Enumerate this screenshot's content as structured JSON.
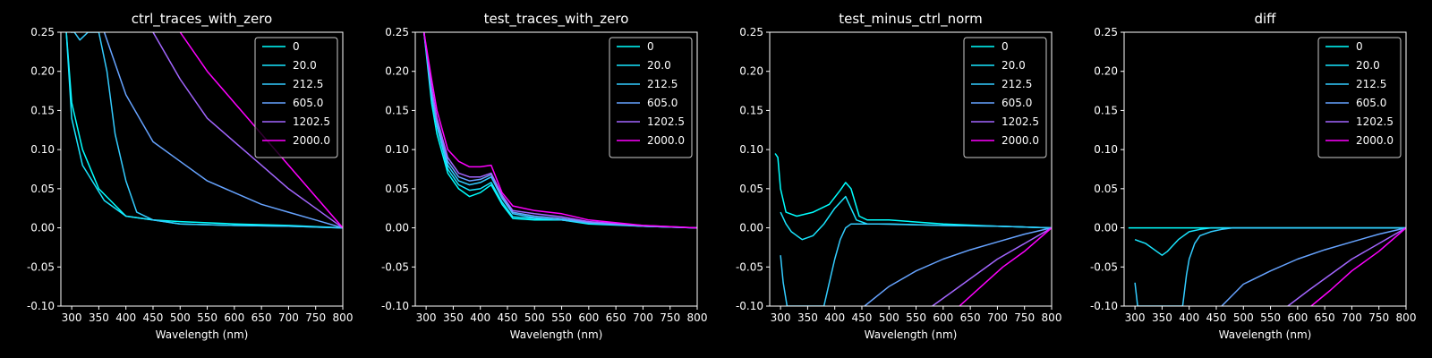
{
  "chart_data": [
    {
      "type": "line",
      "title": "ctrl_traces_with_zero",
      "xlabel": "Wavelength (nm)",
      "ylabel": "",
      "xlim": [
        280,
        800
      ],
      "ylim": [
        -0.1,
        0.25
      ],
      "xticks": [
        300,
        350,
        400,
        450,
        500,
        550,
        600,
        650,
        700,
        750,
        800
      ],
      "yticks": [
        -0.1,
        -0.05,
        0.0,
        0.05,
        0.1,
        0.15,
        0.2,
        0.25
      ],
      "legend_position": "top-right",
      "series": [
        {
          "name": "0",
          "color": "#00ffff",
          "x": [
            290,
            300,
            320,
            350,
            400,
            450,
            500,
            600,
            700,
            800
          ],
          "y": [
            0.25,
            0.16,
            0.1,
            0.05,
            0.015,
            0.01,
            0.008,
            0.005,
            0.003,
            0.0
          ]
        },
        {
          "name": "20.0",
          "color": "#19e6ff",
          "x": [
            290,
            300,
            320,
            360,
            400,
            450,
            500,
            600,
            700,
            800
          ],
          "y": [
            0.25,
            0.14,
            0.08,
            0.035,
            0.015,
            0.01,
            0.005,
            0.003,
            0.002,
            0.0
          ]
        },
        {
          "name": "212.5",
          "color": "#33ccff",
          "x": [
            298,
            305,
            315,
            330,
            350,
            365,
            380,
            400,
            420,
            450,
            500,
            600,
            700,
            800
          ],
          "y": [
            0.25,
            0.25,
            0.24,
            0.25,
            0.25,
            0.2,
            0.12,
            0.06,
            0.02,
            0.01,
            0.005,
            0.003,
            0.002,
            0.0
          ]
        },
        {
          "name": "605.0",
          "color": "#66a3ff",
          "x": [
            360,
            400,
            450,
            500,
            550,
            600,
            650,
            700,
            750,
            800
          ],
          "y": [
            0.25,
            0.17,
            0.11,
            0.085,
            0.06,
            0.045,
            0.03,
            0.02,
            0.01,
            0.0
          ]
        },
        {
          "name": "1202.5",
          "color": "#a366ff",
          "x": [
            450,
            500,
            550,
            600,
            650,
            700,
            750,
            800
          ],
          "y": [
            0.25,
            0.19,
            0.14,
            0.11,
            0.08,
            0.05,
            0.025,
            0.0
          ]
        },
        {
          "name": "2000.0",
          "color": "#ff00ff",
          "x": [
            500,
            550,
            600,
            650,
            700,
            750,
            800
          ],
          "y": [
            0.25,
            0.2,
            0.16,
            0.12,
            0.08,
            0.04,
            0.0
          ]
        }
      ]
    },
    {
      "type": "line",
      "title": "test_traces_with_zero",
      "xlabel": "Wavelength (nm)",
      "ylabel": "",
      "xlim": [
        280,
        800
      ],
      "ylim": [
        -0.1,
        0.25
      ],
      "xticks": [
        300,
        350,
        400,
        450,
        500,
        550,
        600,
        650,
        700,
        750,
        800
      ],
      "yticks": [
        -0.1,
        -0.05,
        0.0,
        0.05,
        0.1,
        0.15,
        0.2,
        0.25
      ],
      "legend_position": "top-right",
      "series": [
        {
          "name": "0",
          "color": "#00ffff",
          "x": [
            296,
            310,
            320,
            340,
            360,
            380,
            400,
            420,
            440,
            460,
            500,
            550,
            600,
            700,
            800
          ],
          "y": [
            0.25,
            0.16,
            0.12,
            0.07,
            0.05,
            0.04,
            0.045,
            0.055,
            0.03,
            0.012,
            0.01,
            0.01,
            0.005,
            0.002,
            0.0
          ]
        },
        {
          "name": "20.0",
          "color": "#19e6ff",
          "x": [
            296,
            310,
            320,
            340,
            360,
            380,
            400,
            420,
            440,
            460,
            500,
            550,
            600,
            700,
            800
          ],
          "y": [
            0.25,
            0.17,
            0.13,
            0.075,
            0.055,
            0.048,
            0.05,
            0.058,
            0.033,
            0.014,
            0.012,
            0.01,
            0.006,
            0.002,
            0.0
          ]
        },
        {
          "name": "212.5",
          "color": "#33ccff",
          "x": [
            296,
            310,
            320,
            340,
            360,
            380,
            400,
            420,
            440,
            460,
            500,
            550,
            600,
            700,
            800
          ],
          "y": [
            0.25,
            0.17,
            0.13,
            0.08,
            0.06,
            0.055,
            0.058,
            0.065,
            0.038,
            0.018,
            0.013,
            0.01,
            0.006,
            0.002,
            0.0
          ]
        },
        {
          "name": "605.0",
          "color": "#66a3ff",
          "x": [
            296,
            310,
            320,
            340,
            360,
            380,
            400,
            420,
            440,
            460,
            500,
            550,
            600,
            700,
            800
          ],
          "y": [
            0.25,
            0.175,
            0.135,
            0.085,
            0.065,
            0.06,
            0.062,
            0.068,
            0.04,
            0.02,
            0.015,
            0.012,
            0.007,
            0.002,
            0.0
          ]
        },
        {
          "name": "1202.5",
          "color": "#a366ff",
          "x": [
            296,
            310,
            320,
            340,
            360,
            380,
            400,
            420,
            440,
            460,
            500,
            550,
            600,
            700,
            800
          ],
          "y": [
            0.25,
            0.18,
            0.14,
            0.09,
            0.07,
            0.065,
            0.065,
            0.07,
            0.042,
            0.022,
            0.018,
            0.014,
            0.008,
            0.003,
            0.0
          ]
        },
        {
          "name": "2000.0",
          "color": "#ff00ff",
          "x": [
            296,
            310,
            320,
            340,
            360,
            380,
            400,
            420,
            440,
            460,
            500,
            550,
            600,
            700,
            800
          ],
          "y": [
            0.25,
            0.19,
            0.15,
            0.1,
            0.085,
            0.078,
            0.078,
            0.08,
            0.045,
            0.028,
            0.022,
            0.018,
            0.01,
            0.003,
            0.0
          ]
        }
      ]
    },
    {
      "type": "line",
      "title": "test_minus_ctrl_norm",
      "xlabel": "Wavelength (nm)",
      "ylabel": "",
      "xlim": [
        280,
        800
      ],
      "ylim": [
        -0.1,
        0.25
      ],
      "xticks": [
        300,
        350,
        400,
        450,
        500,
        550,
        600,
        650,
        700,
        750,
        800
      ],
      "yticks": [
        -0.1,
        -0.05,
        0.0,
        0.05,
        0.1,
        0.15,
        0.2,
        0.25
      ],
      "legend_position": "top-right",
      "series": [
        {
          "name": "0",
          "color": "#00ffff",
          "x": [
            290,
            295,
            300,
            310,
            330,
            360,
            390,
            410,
            420,
            430,
            445,
            460,
            500,
            600,
            700,
            800
          ],
          "y": [
            0.095,
            0.09,
            0.05,
            0.02,
            0.015,
            0.02,
            0.03,
            0.048,
            0.058,
            0.05,
            0.015,
            0.01,
            0.01,
            0.005,
            0.002,
            0.0
          ]
        },
        {
          "name": "20.0",
          "color": "#19e6ff",
          "x": [
            300,
            310,
            320,
            340,
            360,
            380,
            400,
            420,
            440,
            460,
            500,
            600,
            700,
            800
          ],
          "y": [
            0.02,
            0.005,
            -0.005,
            -0.015,
            -0.01,
            0.005,
            0.025,
            0.04,
            0.01,
            0.005,
            0.005,
            0.003,
            0.002,
            0.0
          ]
        },
        {
          "name": "212.5",
          "color": "#33ccff",
          "x": [
            300,
            305,
            312,
            380,
            390,
            400,
            410,
            420,
            430,
            450,
            480,
            600,
            700,
            800
          ],
          "y": [
            -0.035,
            -0.07,
            -0.1,
            -0.1,
            -0.07,
            -0.04,
            -0.015,
            0.0,
            0.005,
            0.005,
            0.005,
            0.003,
            0.002,
            0.0
          ]
        },
        {
          "name": "605.0",
          "color": "#66a3ff",
          "x": [
            455,
            500,
            550,
            600,
            650,
            700,
            750,
            800
          ],
          "y": [
            -0.1,
            -0.075,
            -0.055,
            -0.04,
            -0.028,
            -0.018,
            -0.008,
            0.0
          ]
        },
        {
          "name": "1202.5",
          "color": "#a366ff",
          "x": [
            580,
            620,
            660,
            700,
            750,
            800
          ],
          "y": [
            -0.1,
            -0.08,
            -0.06,
            -0.04,
            -0.02,
            0.0
          ]
        },
        {
          "name": "2000.0",
          "color": "#ff00ff",
          "x": [
            630,
            670,
            710,
            750,
            800
          ],
          "y": [
            -0.1,
            -0.075,
            -0.05,
            -0.03,
            0.0
          ]
        }
      ]
    },
    {
      "type": "line",
      "title": "diff",
      "xlabel": "Wavelength (nm)",
      "ylabel": "",
      "xlim": [
        280,
        800
      ],
      "ylim": [
        -0.1,
        0.25
      ],
      "xticks": [
        300,
        350,
        400,
        450,
        500,
        550,
        600,
        650,
        700,
        750,
        800
      ],
      "yticks": [
        -0.1,
        -0.05,
        0.0,
        0.05,
        0.1,
        0.15,
        0.2,
        0.25
      ],
      "legend_position": "top-right",
      "series": [
        {
          "name": "0",
          "color": "#00ffff",
          "x": [
            288,
            400,
            500,
            600,
            700,
            800
          ],
          "y": [
            0.0,
            0.0,
            0.0,
            0.0,
            0.0,
            0.0
          ]
        },
        {
          "name": "20.0",
          "color": "#19e6ff",
          "x": [
            300,
            320,
            340,
            350,
            360,
            380,
            400,
            420,
            440,
            460,
            480,
            500,
            600,
            700,
            800
          ],
          "y": [
            -0.015,
            -0.02,
            -0.03,
            -0.035,
            -0.03,
            -0.015,
            -0.005,
            -0.002,
            0.0,
            0.0,
            0.0,
            0.0,
            0.0,
            0.0,
            0.0
          ]
        },
        {
          "name": "212.5",
          "color": "#33ccff",
          "x": [
            300,
            305,
            388,
            395,
            400,
            410,
            420,
            440,
            460,
            480,
            500,
            600,
            700,
            800
          ],
          "y": [
            -0.07,
            -0.1,
            -0.1,
            -0.06,
            -0.04,
            -0.02,
            -0.01,
            -0.005,
            -0.002,
            0.0,
            0.0,
            0.0,
            0.0,
            0.0
          ]
        },
        {
          "name": "605.0",
          "color": "#66a3ff",
          "x": [
            460,
            500,
            550,
            600,
            650,
            700,
            750,
            800
          ],
          "y": [
            -0.1,
            -0.072,
            -0.055,
            -0.04,
            -0.028,
            -0.018,
            -0.008,
            0.0
          ]
        },
        {
          "name": "1202.5",
          "color": "#a366ff",
          "x": [
            582,
            620,
            660,
            700,
            750,
            800
          ],
          "y": [
            -0.1,
            -0.08,
            -0.06,
            -0.04,
            -0.02,
            0.0
          ]
        },
        {
          "name": "2000.0",
          "color": "#ff00ff",
          "x": [
            625,
            660,
            700,
            750,
            800
          ],
          "y": [
            -0.1,
            -0.08,
            -0.055,
            -0.03,
            0.0
          ]
        }
      ]
    }
  ]
}
